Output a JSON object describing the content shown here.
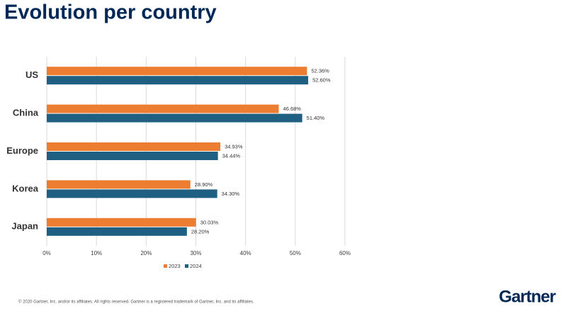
{
  "chart_data": {
    "type": "barh",
    "title": "Evolution per country",
    "categories": [
      "US",
      "China",
      "Europe",
      "Korea",
      "Japan"
    ],
    "series": [
      {
        "name": "2023",
        "color": "#ed7d31",
        "values": [
          52.36,
          46.68,
          34.93,
          28.9,
          30.03
        ],
        "value_labels": [
          "52.36%",
          "46.68%",
          "34.93%",
          "28.90%",
          "30.03%"
        ]
      },
      {
        "name": "2024",
        "color": "#1f5f82",
        "values": [
          52.6,
          51.4,
          34.44,
          34.3,
          28.2
        ],
        "value_labels": [
          "52.60%",
          "51.40%",
          "34.44%",
          "34.30%",
          "28.20%"
        ]
      }
    ],
    "xlim": [
      0,
      60
    ],
    "xticks": [
      {
        "value": 0,
        "label": "0%"
      },
      {
        "value": 10,
        "label": "10%"
      },
      {
        "value": 20,
        "label": "20%"
      },
      {
        "value": 30,
        "label": "30%"
      },
      {
        "value": 40,
        "label": "40%"
      },
      {
        "value": 50,
        "label": "50%"
      },
      {
        "value": 60,
        "label": "60%"
      }
    ],
    "grid": true,
    "legend": "bottom"
  },
  "footer": "© 2020 Gartner, Inc. and/or its affiliates. All rights reserved. Gartner is a registered trademark of Gartner, Inc. and its affiliates.",
  "logo": "Gartner"
}
